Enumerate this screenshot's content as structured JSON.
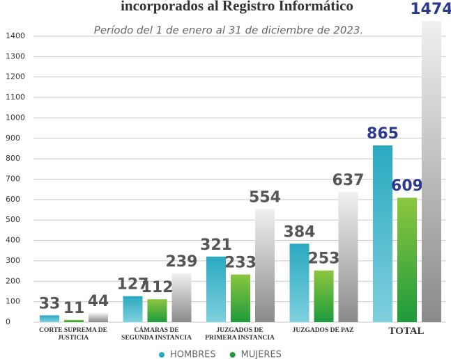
{
  "chart_data": {
    "type": "bar",
    "title": "incorporados al Registro Informático",
    "subtitle": "Período del 1 de enero al 31 de diciembre de 2023.",
    "categories": [
      "CORTE SUPREMA DE JUSTICIA",
      "CÁMARAS DE SEGUNDA INSTANCIA",
      "JUZGADOS DE PRIMERA INSTANCIA",
      "JUZGADOS DE PAZ",
      "TOTAL"
    ],
    "series": [
      {
        "name": "HOMBRES",
        "color": "#2aa9c0",
        "values": [
          33,
          127,
          321,
          384,
          865
        ]
      },
      {
        "name": "MUJERES",
        "color": "#1e9a3c",
        "values": [
          11,
          112,
          233,
          253,
          609
        ]
      },
      {
        "color": "#9a9a9a",
        "values": [
          44,
          239,
          554,
          637,
          1474
        ]
      }
    ],
    "ylim": [
      0,
      1500
    ],
    "yticks": [
      0,
      100,
      200,
      300,
      400,
      500,
      600,
      700,
      800,
      900,
      1000,
      1100,
      1200,
      1300,
      1400
    ],
    "grid": true,
    "legend": "bottom"
  }
}
